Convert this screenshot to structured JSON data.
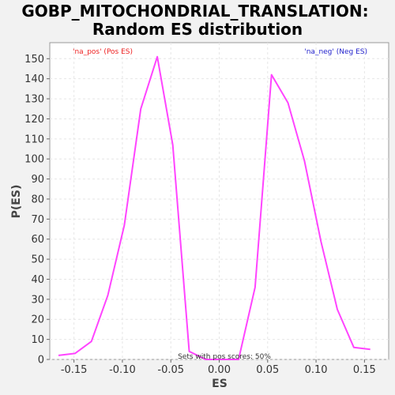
{
  "chart_data": {
    "type": "line",
    "title": "GOBP_MITOCHONDRIAL_TRANSLATION:",
    "subtitle": "Random ES distribution",
    "xlabel": "ES",
    "ylabel": "P(ES)",
    "xlim": [
      -0.175,
      0.175
    ],
    "ylim": [
      0,
      158
    ],
    "grid": true,
    "xticks": [
      -0.15,
      -0.1,
      -0.05,
      0.0,
      0.05,
      0.1,
      0.15
    ],
    "xtick_labels": [
      "-0.15",
      "-0.10",
      "-0.05",
      "0.00",
      "0.05",
      "0.10",
      "0.15"
    ],
    "yticks": [
      0,
      10,
      20,
      30,
      40,
      50,
      60,
      70,
      80,
      90,
      100,
      110,
      120,
      130,
      140,
      150
    ],
    "ytick_labels": [
      "0",
      "10",
      "20",
      "30",
      "40",
      "50",
      "60",
      "70",
      "80",
      "90",
      "100",
      "110",
      "120",
      "130",
      "140",
      "150"
    ],
    "series": [
      {
        "color": "#ff44ff",
        "x": [
          -0.166,
          -0.149,
          -0.132,
          -0.115,
          -0.098,
          -0.081,
          -0.064,
          -0.048,
          -0.031,
          -0.014,
          0.003,
          0.02,
          0.037,
          0.054,
          0.071,
          0.088,
          0.105,
          0.122,
          0.139,
          0.156
        ],
        "y": [
          2,
          3,
          9,
          32,
          67,
          125,
          151,
          107,
          4,
          0,
          0,
          0,
          36,
          142,
          128,
          99,
          59,
          25,
          6,
          5
        ]
      }
    ],
    "legend": [
      {
        "label": "'na_pos' (Pos ES)",
        "color": "#ee2222",
        "position": "top-left"
      },
      {
        "label": "'na_neg' (Neg ES)",
        "color": "#2222cc",
        "position": "top-right"
      }
    ],
    "annotation": "Sets with pos scores: 50%"
  }
}
